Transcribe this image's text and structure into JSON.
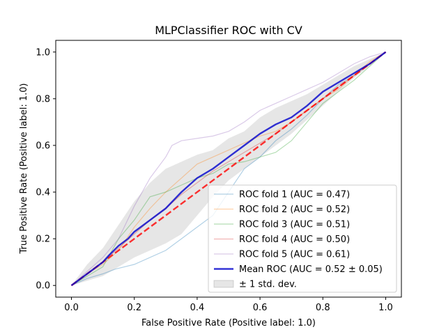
{
  "chart_data": {
    "type": "line",
    "title": "MLPClassifier ROC with CV",
    "xlabel": "False Positive Rate (Positive label: 1.0)",
    "ylabel": "True Positive Rate (Positive label: 1.0)",
    "xlim": [
      -0.05,
      1.05
    ],
    "ylim": [
      -0.05,
      1.05
    ],
    "xticks": [
      "0.0",
      "0.2",
      "0.4",
      "0.6",
      "0.8",
      "1.0"
    ],
    "yticks": [
      "0.0",
      "0.2",
      "0.4",
      "0.6",
      "0.8",
      "1.0"
    ],
    "grid": false,
    "legend_position": "lower-right",
    "series": [
      {
        "name": "ROC fold 1 (AUC = 0.47)",
        "color": "#1f77b4",
        "style": "thin",
        "x": [
          0,
          0.05,
          0.1,
          0.14,
          0.2,
          0.3,
          0.35,
          0.4,
          0.45,
          0.5,
          0.55,
          0.6,
          0.65,
          0.7,
          0.75,
          0.8,
          0.85,
          0.9,
          0.95,
          1.0
        ],
        "y": [
          0,
          0.03,
          0.05,
          0.07,
          0.09,
          0.15,
          0.2,
          0.25,
          0.3,
          0.4,
          0.5,
          0.55,
          0.62,
          0.67,
          0.73,
          0.8,
          0.86,
          0.9,
          0.95,
          1.0
        ]
      },
      {
        "name": "ROC fold 2 (AUC = 0.52)",
        "color": "#ff7f0e",
        "style": "thin",
        "x": [
          0,
          0.05,
          0.1,
          0.15,
          0.2,
          0.25,
          0.3,
          0.35,
          0.4,
          0.45,
          0.5,
          0.55,
          0.6,
          0.65,
          0.7,
          0.75,
          0.8,
          0.85,
          0.9,
          0.95,
          1.0
        ],
        "y": [
          0,
          0.05,
          0.09,
          0.15,
          0.25,
          0.33,
          0.4,
          0.46,
          0.52,
          0.55,
          0.58,
          0.61,
          0.64,
          0.66,
          0.7,
          0.75,
          0.8,
          0.84,
          0.9,
          0.96,
          1.0
        ]
      },
      {
        "name": "ROC fold 3 (AUC = 0.51)",
        "color": "#2ca02c",
        "style": "thin",
        "x": [
          0,
          0.05,
          0.1,
          0.15,
          0.2,
          0.25,
          0.3,
          0.35,
          0.4,
          0.45,
          0.5,
          0.55,
          0.6,
          0.65,
          0.7,
          0.75,
          0.8,
          0.85,
          0.9,
          0.95,
          1.0
        ],
        "y": [
          0,
          0.04,
          0.08,
          0.2,
          0.28,
          0.38,
          0.4,
          0.43,
          0.46,
          0.48,
          0.52,
          0.53,
          0.55,
          0.57,
          0.62,
          0.7,
          0.78,
          0.83,
          0.88,
          0.94,
          1.0
        ]
      },
      {
        "name": "ROC fold 4 (AUC = 0.50)",
        "color": "#d62728",
        "style": "thin",
        "x": [
          0,
          0.05,
          0.1,
          0.15,
          0.2,
          0.25,
          0.3,
          0.35,
          0.4,
          0.45,
          0.5,
          0.55,
          0.6,
          0.65,
          0.7,
          0.75,
          0.8,
          0.85,
          0.9,
          0.95,
          1.0
        ],
        "y": [
          0,
          0.05,
          0.1,
          0.16,
          0.22,
          0.28,
          0.33,
          0.39,
          0.44,
          0.49,
          0.53,
          0.57,
          0.61,
          0.65,
          0.7,
          0.75,
          0.8,
          0.85,
          0.9,
          0.95,
          1.0
        ]
      },
      {
        "name": "ROC fold 5 (AUC = 0.61)",
        "color": "#9467bd",
        "style": "thin",
        "x": [
          0,
          0.05,
          0.1,
          0.15,
          0.2,
          0.25,
          0.3,
          0.32,
          0.35,
          0.4,
          0.45,
          0.5,
          0.55,
          0.6,
          0.65,
          0.7,
          0.75,
          0.8,
          0.85,
          0.9,
          0.95,
          1.0
        ],
        "y": [
          0,
          0.06,
          0.12,
          0.2,
          0.34,
          0.46,
          0.55,
          0.6,
          0.62,
          0.63,
          0.64,
          0.66,
          0.7,
          0.75,
          0.78,
          0.81,
          0.84,
          0.87,
          0.91,
          0.95,
          0.98,
          1.0
        ]
      },
      {
        "name": "Mean ROC (AUC = 0.52 ± 0.05)",
        "color": "#0000cc",
        "style": "thick",
        "x": [
          0,
          0.02,
          0.05,
          0.08,
          0.1,
          0.12,
          0.15,
          0.18,
          0.2,
          0.25,
          0.3,
          0.35,
          0.4,
          0.45,
          0.5,
          0.55,
          0.6,
          0.65,
          0.7,
          0.75,
          0.8,
          0.85,
          0.9,
          0.95,
          1.0
        ],
        "y": [
          0,
          0.02,
          0.05,
          0.08,
          0.1,
          0.13,
          0.17,
          0.2,
          0.23,
          0.28,
          0.33,
          0.4,
          0.46,
          0.5,
          0.55,
          0.6,
          0.65,
          0.69,
          0.72,
          0.77,
          0.83,
          0.87,
          0.91,
          0.95,
          1.0
        ]
      }
    ],
    "chance_line": {
      "x": [
        0,
        1
      ],
      "y": [
        0,
        1
      ],
      "color": "#ff0000"
    },
    "std_band": {
      "name": "± 1 std. dev.",
      "x": [
        0,
        0.05,
        0.1,
        0.15,
        0.2,
        0.25,
        0.3,
        0.35,
        0.4,
        0.45,
        0.5,
        0.55,
        0.6,
        0.65,
        0.7,
        0.75,
        0.8,
        0.85,
        0.9,
        0.95,
        1.0
      ],
      "upper": [
        0,
        0.09,
        0.16,
        0.26,
        0.36,
        0.44,
        0.5,
        0.53,
        0.56,
        0.58,
        0.63,
        0.66,
        0.72,
        0.76,
        0.79,
        0.82,
        0.86,
        0.9,
        0.94,
        0.97,
        1.0
      ],
      "lower": [
        0,
        0.02,
        0.04,
        0.08,
        0.12,
        0.15,
        0.18,
        0.22,
        0.3,
        0.38,
        0.45,
        0.5,
        0.55,
        0.6,
        0.65,
        0.71,
        0.77,
        0.83,
        0.89,
        0.94,
        1.0
      ]
    }
  }
}
